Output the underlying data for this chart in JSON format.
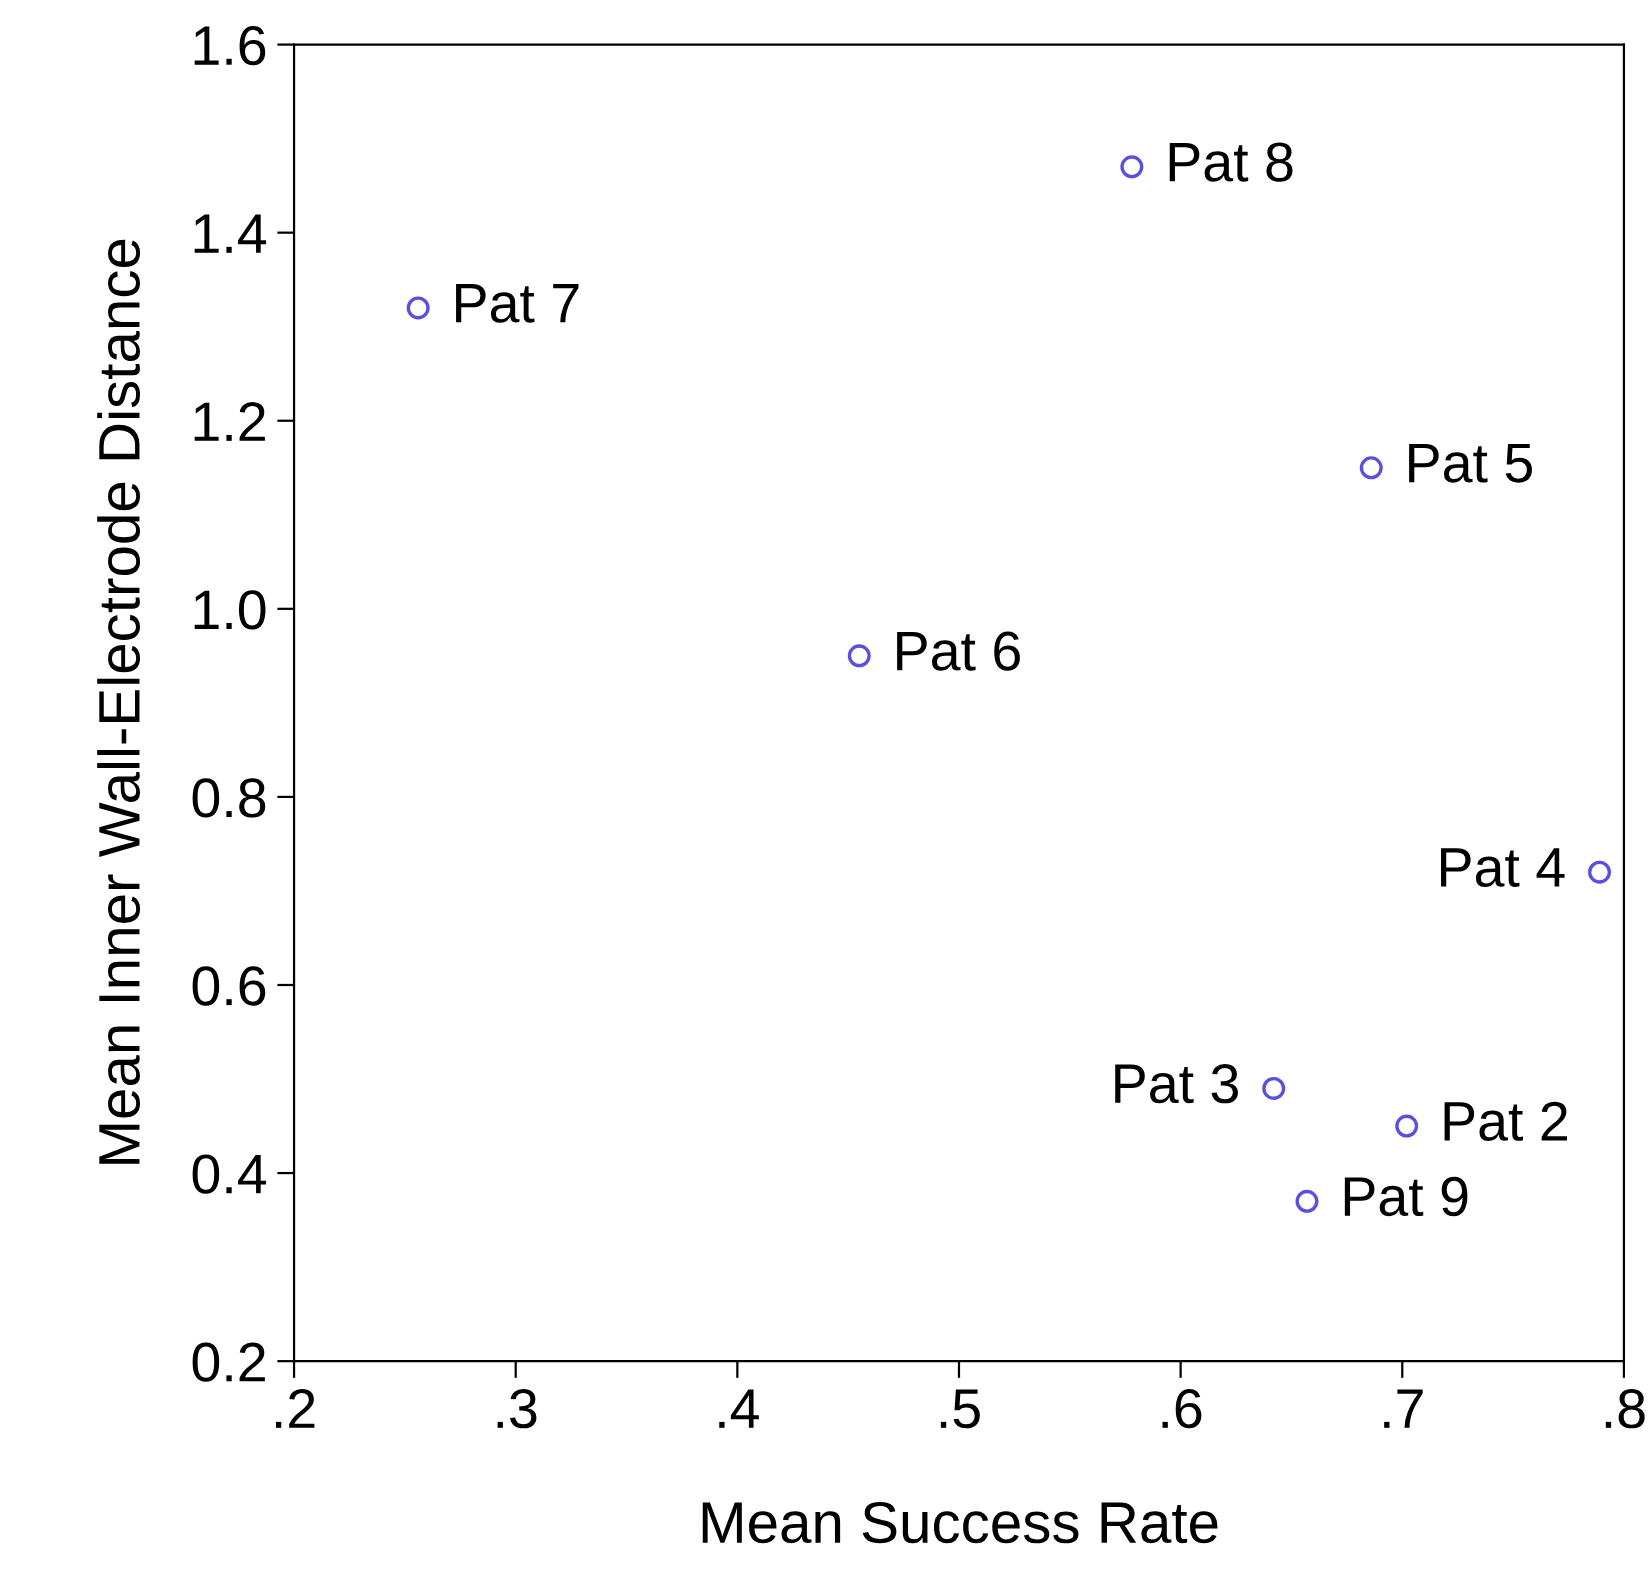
{
  "chart_data": {
    "type": "scatter",
    "xlabel": "Mean Success Rate",
    "ylabel": "Mean Inner Wall-Electrode Distance",
    "x": [
      0.578,
      0.256,
      0.686,
      0.455,
      0.789,
      0.702,
      0.657,
      0.642
    ],
    "series": [
      {
        "color": "#5a4fe0",
        "values": [
          1.47,
          1.32,
          1.15,
          0.95,
          0.72,
          0.45,
          0.37,
          0.49
        ]
      }
    ],
    "marker": "circle",
    "grid": false,
    "legend": false,
    "xlim": [
      0.2,
      0.8
    ],
    "ylim": [
      0.2,
      1.6
    ],
    "xticks": [
      {
        "value": 0.2,
        "label": ".2"
      },
      {
        "value": 0.3,
        "label": ".3"
      },
      {
        "value": 0.4,
        "label": ".4"
      },
      {
        "value": 0.5,
        "label": ".5"
      },
      {
        "value": 0.6,
        "label": ".6"
      },
      {
        "value": 0.7,
        "label": ".7"
      },
      {
        "value": 0.8,
        "label": ".8"
      }
    ],
    "yticks": [
      {
        "value": 0.2,
        "label": "0.2"
      },
      {
        "value": 0.4,
        "label": "0.4"
      },
      {
        "value": 0.6,
        "label": "0.6"
      },
      {
        "value": 0.8,
        "label": "0.8"
      },
      {
        "value": 1.0,
        "label": "1.0"
      },
      {
        "value": 1.2,
        "label": "1.2"
      },
      {
        "value": 1.4,
        "label": "1.4"
      },
      {
        "value": 1.6,
        "label": "1.6"
      }
    ],
    "annotations": [
      {
        "text": "Pat 8",
        "x": 0.578,
        "y": 1.47
      },
      {
        "text": "Pat 7",
        "x": 0.256,
        "y": 1.32
      },
      {
        "text": "Pat 5",
        "x": 0.686,
        "y": 1.15
      },
      {
        "text": "Pat 6",
        "x": 0.455,
        "y": 0.95
      },
      {
        "text": "Pat 4",
        "x": 0.789,
        "y": 0.72
      },
      {
        "text": "Pat 2",
        "x": 0.702,
        "y": 0.45
      },
      {
        "text": "Pat 9",
        "x": 0.657,
        "y": 0.37
      },
      {
        "text": "Pat 3",
        "x": 0.642,
        "y": 0.49
      }
    ]
  }
}
